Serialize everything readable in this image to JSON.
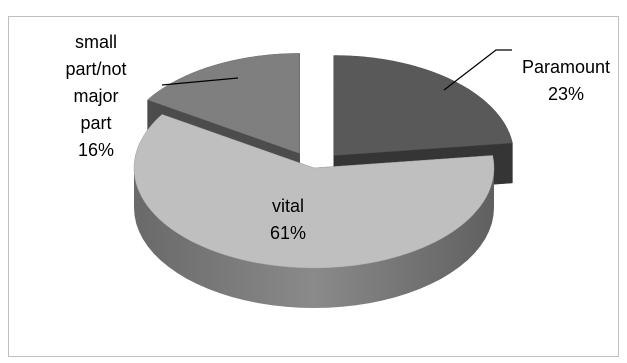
{
  "chart_data": {
    "type": "pie",
    "style": "3d-exploded",
    "title": "",
    "legend": "none",
    "slices": [
      {
        "label_lines": [
          "Paramount"
        ],
        "percent_label": "23%",
        "value": 23,
        "color": "#595959"
      },
      {
        "label_lines": [
          "vital"
        ],
        "percent_label": "61%",
        "value": 61,
        "color": "#bfbfbf"
      },
      {
        "label_lines": [
          "small",
          "part/not",
          "major",
          "part"
        ],
        "percent_label": "16%",
        "value": 16,
        "color": "#7f7f7f"
      }
    ]
  }
}
